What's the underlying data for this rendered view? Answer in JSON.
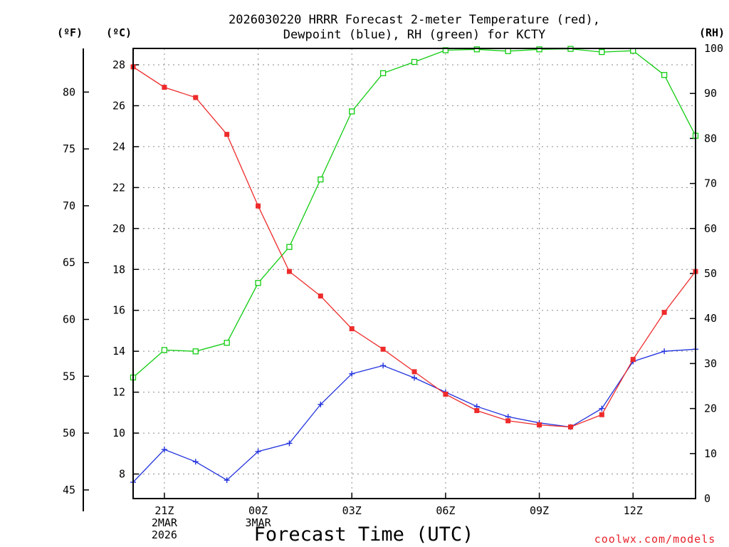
{
  "colors": {
    "temperature": "#ee2b2b",
    "dewpoint": "#2233dd",
    "rh": "#11cc11",
    "grid": "#8a8a8a",
    "credit": "#e8202a"
  },
  "chart_data": {
    "type": "line",
    "title": [
      "2026030220 HRRR Forecast 2-meter Temperature (red),",
      "Dewpoint (blue), RH (green) for KCTY"
    ],
    "left_unit_f": "(ºF)",
    "left_unit_c": "(ºC)",
    "right_unit": "(RH)",
    "xlabel": "Forecast Time (UTC)",
    "credit": "coolwx.com/models",
    "x_hours": [
      20,
      21,
      22,
      23,
      24,
      25,
      26,
      27,
      28,
      29,
      30,
      31,
      32,
      33,
      34,
      35,
      36,
      37,
      38
    ],
    "xlim": [
      20,
      38
    ],
    "x_ticks": [
      {
        "x": 21,
        "lines": [
          "21Z",
          "2MAR",
          "2026"
        ]
      },
      {
        "x": 24,
        "lines": [
          "00Z",
          "3MAR"
        ]
      },
      {
        "x": 27,
        "lines": [
          "03Z"
        ]
      },
      {
        "x": 30,
        "lines": [
          "06Z"
        ]
      },
      {
        "x": 33,
        "lines": [
          "09Z"
        ]
      },
      {
        "x": 36,
        "lines": [
          "12Z"
        ]
      }
    ],
    "y_celsius": {
      "lim": [
        6.8,
        28.8
      ],
      "ticks": [
        8,
        10,
        12,
        14,
        16,
        18,
        20,
        22,
        24,
        26,
        28
      ]
    },
    "y_fahrenheit": {
      "ticks": [
        45,
        50,
        55,
        60,
        65,
        70,
        75,
        80
      ]
    },
    "y_rh": {
      "lim": [
        0,
        100
      ],
      "ticks": [
        0,
        10,
        20,
        30,
        40,
        50,
        60,
        70,
        80,
        90,
        100
      ]
    },
    "series": [
      {
        "name": "Temperature",
        "unit": "C",
        "marker": "filled-square",
        "values": [
          27.9,
          26.9,
          26.4,
          24.6,
          21.1,
          17.9,
          16.7,
          15.1,
          14.1,
          13.0,
          11.9,
          11.1,
          10.6,
          10.4,
          10.3,
          10.9,
          13.6,
          15.9,
          17.9
        ]
      },
      {
        "name": "Dewpoint",
        "unit": "C",
        "marker": "plus",
        "values": [
          7.6,
          9.2,
          8.6,
          7.7,
          9.1,
          9.5,
          11.4,
          12.9,
          13.3,
          12.7,
          12.0,
          11.3,
          10.8,
          10.5,
          10.3,
          11.2,
          13.5,
          14.0,
          14.1
        ]
      },
      {
        "name": "RH",
        "unit": "%",
        "marker": "open-square",
        "values": [
          26.9,
          33.0,
          32.7,
          34.6,
          47.9,
          55.9,
          70.9,
          86.0,
          94.5,
          97.0,
          99.6,
          99.8,
          99.4,
          99.8,
          99.9,
          99.2,
          99.5,
          94.1,
          80.6
        ]
      }
    ]
  }
}
